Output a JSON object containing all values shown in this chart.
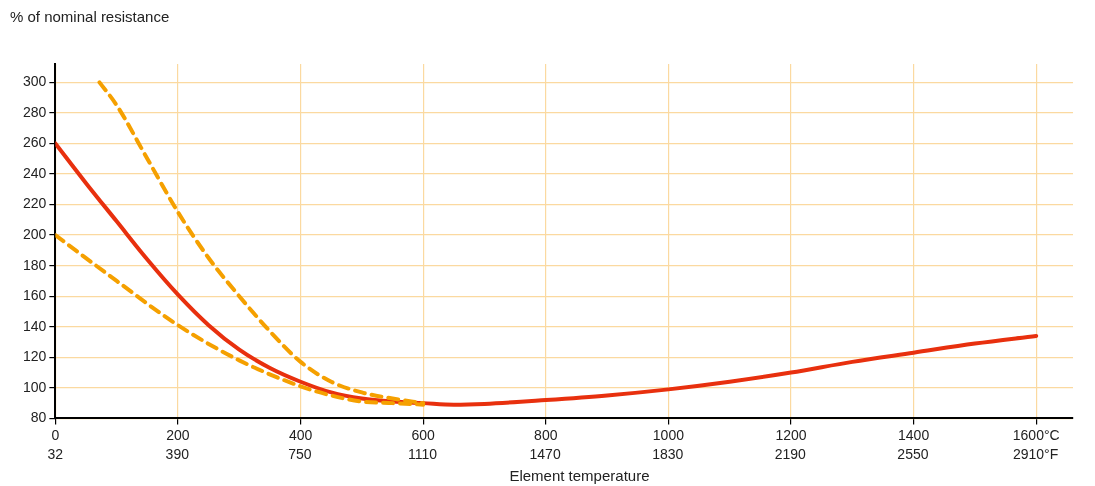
{
  "chart_data": {
    "type": "line",
    "ylabel": "% of nominal resistance",
    "xlabel": "Element temperature",
    "xlim": [
      0,
      1660
    ],
    "ylim": [
      80,
      312
    ],
    "xticks": [
      0,
      200,
      400,
      600,
      800,
      1000,
      1200,
      1400,
      {
        "value": 1600,
        "label": "1600°C"
      }
    ],
    "x2lim": [
      32,
      3020
    ],
    "x2ticks": [
      32,
      390,
      750,
      1110,
      1470,
      1830,
      2190,
      2550,
      {
        "value": 2910,
        "label": "2910°F"
      }
    ],
    "yticks": [
      80,
      100,
      120,
      140,
      160,
      180,
      200,
      220,
      240,
      260,
      280,
      300
    ],
    "grid": true,
    "legend": false,
    "marker": "none",
    "series": [
      {
        "color": "#f5a000",
        "line_style": "dashed",
        "x": [
          72,
          100,
          150,
          200,
          250,
          300,
          350,
          400,
          450,
          500,
          550,
          600
        ],
        "values": [
          300,
          285,
          250,
          215,
          185,
          160,
          137,
          117,
          104,
          97,
          93,
          90
        ]
      },
      {
        "color": "#f5a000",
        "line_style": "dashed",
        "x": [
          0,
          100,
          200,
          300,
          400,
          450,
          500,
          550,
          600
        ],
        "values": [
          200,
          170,
          141,
          118,
          101,
          95,
          91,
          90,
          89
        ]
      },
      {
        "color": "#e8300e",
        "line_style": "solid",
        "x": [
          0,
          50,
          100,
          150,
          200,
          250,
          300,
          350,
          400,
          450,
          500,
          550,
          600,
          650,
          700,
          800,
          900,
          1000,
          1100,
          1200,
          1300,
          1400,
          1500,
          1600
        ],
        "values": [
          260,
          234,
          209,
          184,
          161,
          141,
          125,
          113,
          104,
          97,
          93,
          91,
          90,
          89,
          89.5,
          92,
          95,
          99,
          104,
          110,
          117,
          123,
          129,
          134
        ]
      }
    ]
  }
}
